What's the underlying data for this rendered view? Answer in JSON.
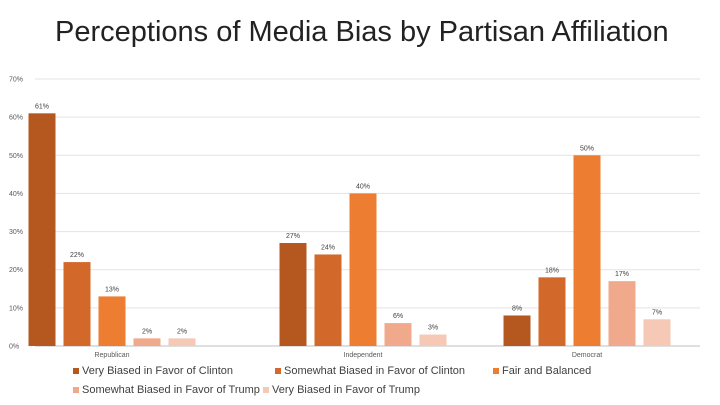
{
  "title": "Perceptions of Media Bias by Partisan Affiliation",
  "chart_data": {
    "type": "bar",
    "title": "Perceptions of Media Bias by Partisan Affiliation",
    "xlabel": "",
    "ylabel": "",
    "ylim": [
      0,
      70
    ],
    "yticks": [
      "0%",
      "10%",
      "20%",
      "30%",
      "40%",
      "50%",
      "60%",
      "70%"
    ],
    "grid": true,
    "legend_position": "bottom",
    "categories": [
      "Republican",
      "Independent",
      "Democrat"
    ],
    "series": [
      {
        "name": "Very Biased in Favor of Clinton",
        "color": "#b5581f",
        "values": [
          61,
          27,
          8
        ],
        "labels": [
          "61%",
          "27%",
          "8%"
        ]
      },
      {
        "name": "Somewhat Biased in Favor of Clinton",
        "color": "#d2692a",
        "values": [
          22,
          24,
          18
        ],
        "labels": [
          "22%",
          "24%",
          "18%"
        ]
      },
      {
        "name": "Fair and Balanced",
        "color": "#ed7d31",
        "values": [
          13,
          40,
          50
        ],
        "labels": [
          "13%",
          "40%",
          "50%"
        ]
      },
      {
        "name": "Somewhat Biased in Favor of Trump",
        "color": "#f1a98c",
        "values": [
          2,
          6,
          17
        ],
        "labels": [
          "2%",
          "6%",
          "17%"
        ]
      },
      {
        "name": "Very Biased in Favor of Trump",
        "color": "#f5c9b6",
        "values": [
          2,
          3,
          7
        ],
        "labels": [
          "2%",
          "3%",
          "7%"
        ]
      }
    ]
  }
}
